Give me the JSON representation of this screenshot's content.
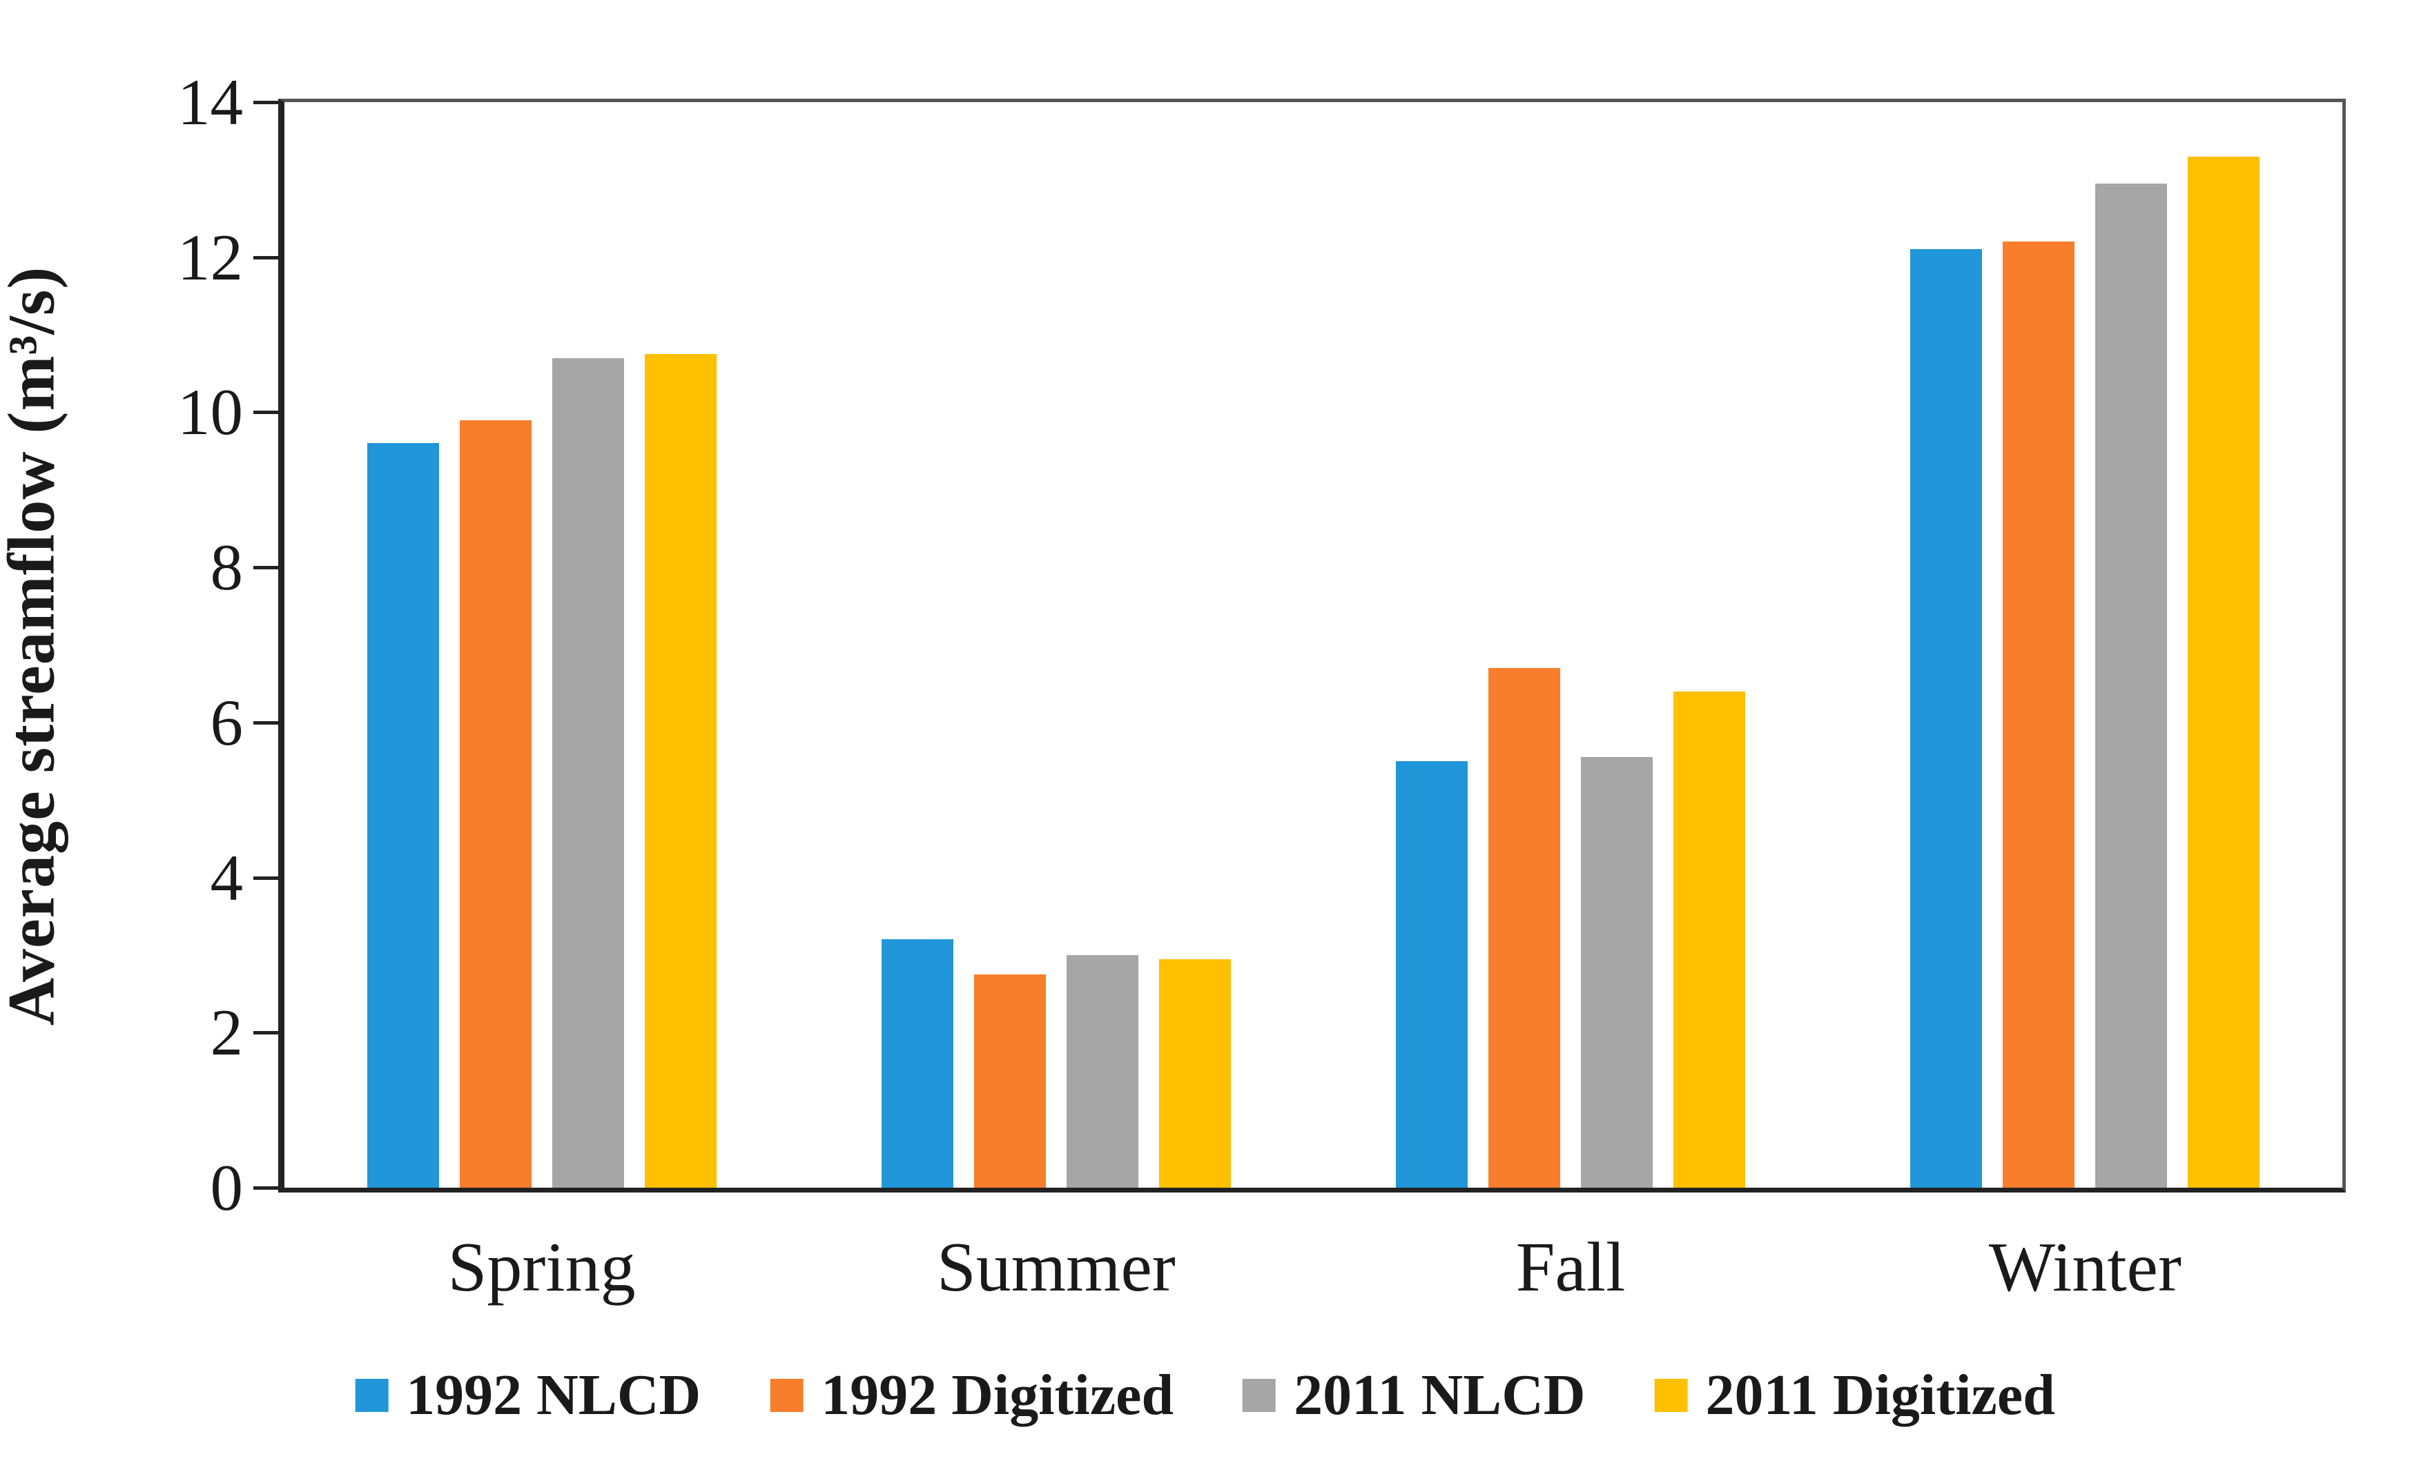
{
  "chart_data": {
    "type": "bar",
    "title": "",
    "xlabel": "",
    "ylabel": "Average streamflow (m³/s)",
    "categories": [
      "Spring",
      "Summer",
      "Fall",
      "Winter"
    ],
    "series": [
      {
        "name": "1992 NLCD",
        "color": "#2196d8",
        "values": [
          9.6,
          3.2,
          5.5,
          12.1
        ]
      },
      {
        "name": "1992 Digitized",
        "color": "#f87e2b",
        "values": [
          9.9,
          2.75,
          6.7,
          12.2
        ]
      },
      {
        "name": "2011 NLCD",
        "color": "#a6a6a6",
        "values": [
          10.7,
          3.0,
          5.55,
          12.95
        ]
      },
      {
        "name": "2011 Digitized",
        "color": "#ffc000",
        "values": [
          10.75,
          2.95,
          6.4,
          13.3
        ]
      }
    ],
    "ylim": [
      0,
      14
    ],
    "yticks": [
      0,
      2,
      4,
      6,
      8,
      10,
      12,
      14
    ],
    "grid": false,
    "legend_position": "bottom",
    "axis_color": "#222222",
    "border_color": "#565656",
    "text_color": "#1a1a1a"
  }
}
